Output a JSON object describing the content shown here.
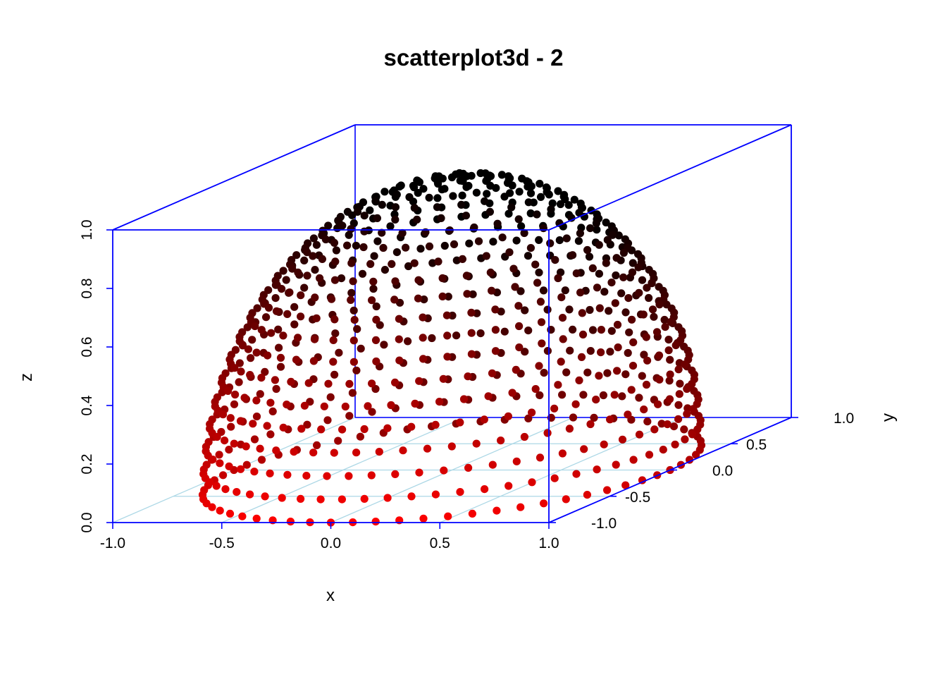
{
  "chart_data": {
    "type": "scatter",
    "title": "scatterplot3d - 2",
    "xlabel": "x",
    "ylabel": "y",
    "zlabel": "z",
    "xlim": [
      -1,
      1
    ],
    "ylim": [
      -1,
      1
    ],
    "zlim": [
      0,
      1
    ],
    "x_ticks": [
      "-1.0",
      "-0.5",
      "0.0",
      "0.5",
      "1.0"
    ],
    "y_ticks": [
      "-1.0",
      "-0.5",
      "0.0",
      "0.5",
      "1.0"
    ],
    "z_ticks": [
      "0.0",
      "0.2",
      "0.4",
      "0.6",
      "0.8",
      "1.0"
    ],
    "box": true,
    "grid": true,
    "box_color": "#0000ff",
    "grid_color": "#add8e6",
    "point_color_low": "#ff0000",
    "point_color_high": "#000000",
    "surface": "upper hemisphere of the unit sphere",
    "radius": 1,
    "z_rings": 21,
    "points_per_ring_at_equator": 64,
    "color_by": "height"
  }
}
